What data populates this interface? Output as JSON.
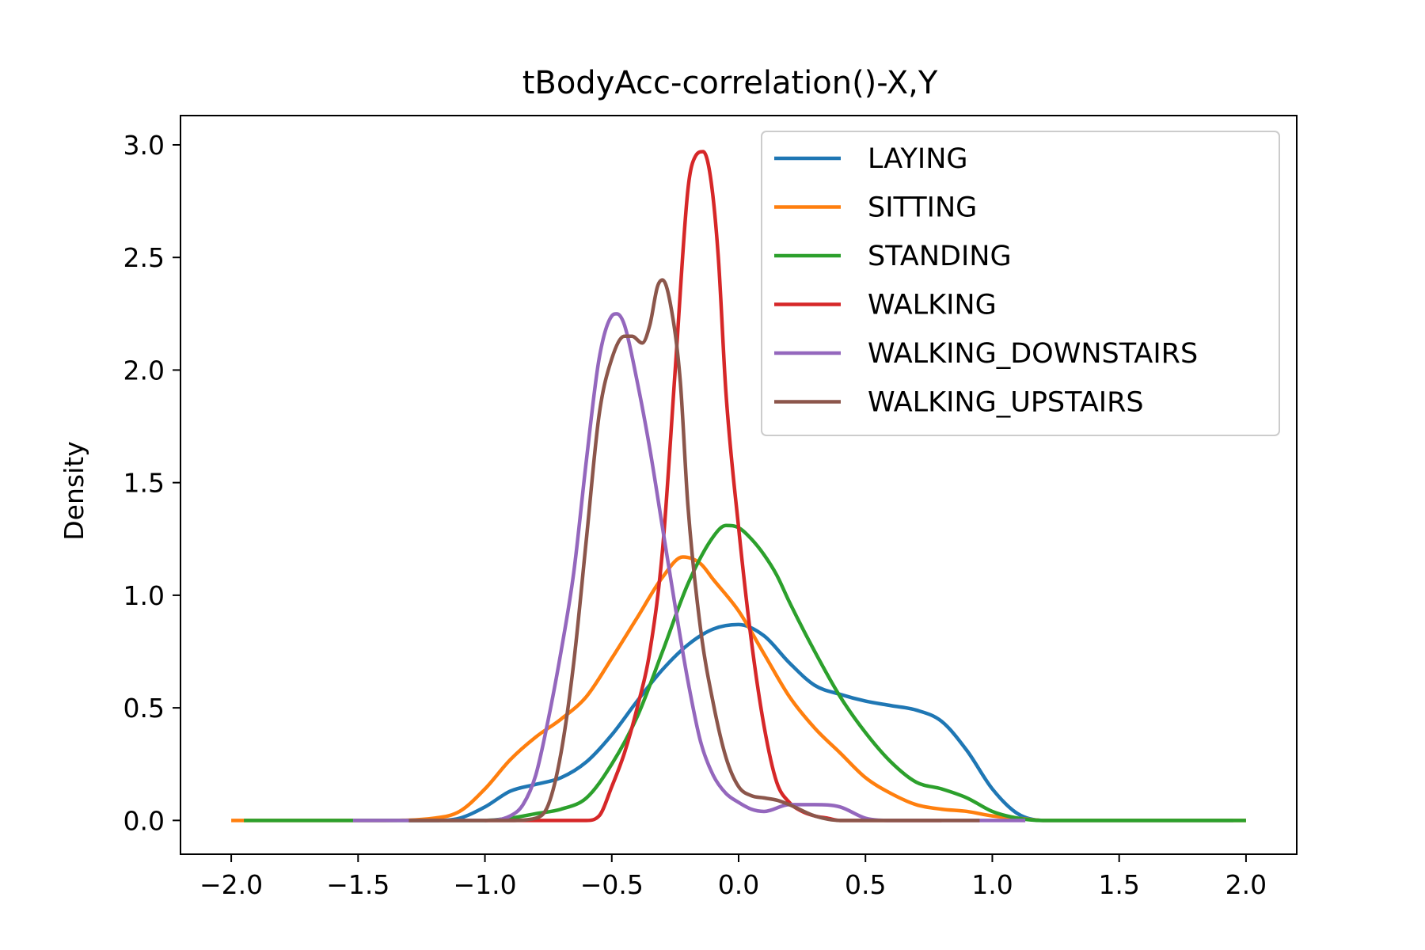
{
  "chart_data": {
    "type": "line",
    "title": "tBodyAcc-correlation()-X,Y",
    "xlabel": "",
    "ylabel": "Density",
    "xlim": [
      -2.2,
      2.2
    ],
    "ylim": [
      -0.15,
      3.13
    ],
    "xticks": [
      -2.0,
      -1.5,
      -1.0,
      -0.5,
      0.0,
      0.5,
      1.0,
      1.5,
      2.0
    ],
    "xtick_labels": [
      "−2.0",
      "−1.5",
      "−1.0",
      "−0.5",
      "0.0",
      "0.5",
      "1.0",
      "1.5",
      "2.0"
    ],
    "yticks": [
      0.0,
      0.5,
      1.0,
      1.5,
      2.0,
      2.5,
      3.0
    ],
    "ytick_labels": [
      "0.0",
      "0.5",
      "1.0",
      "1.5",
      "2.0",
      "2.5",
      "3.0"
    ],
    "grid": false,
    "legend_position": "top-right",
    "series": [
      {
        "name": "LAYING",
        "color": "#1f77b4",
        "x": [
          -1.3,
          -1.2,
          -1.1,
          -1.0,
          -0.9,
          -0.8,
          -0.7,
          -0.6,
          -0.5,
          -0.4,
          -0.3,
          -0.2,
          -0.1,
          0.0,
          0.1,
          0.2,
          0.3,
          0.4,
          0.5,
          0.6,
          0.7,
          0.8,
          0.9,
          1.0,
          1.1,
          1.2,
          1.3,
          1.4,
          1.5,
          1.6,
          1.7,
          1.8,
          1.9,
          1.95
        ],
        "values": [
          0.0,
          0.0,
          0.01,
          0.06,
          0.13,
          0.16,
          0.19,
          0.26,
          0.38,
          0.53,
          0.67,
          0.78,
          0.85,
          0.87,
          0.82,
          0.7,
          0.6,
          0.56,
          0.53,
          0.51,
          0.49,
          0.44,
          0.31,
          0.14,
          0.03,
          0.0,
          0.0,
          0.0,
          0.0,
          0.0,
          0.0,
          0.0,
          0.0,
          0.0
        ]
      },
      {
        "name": "SITTING",
        "color": "#ff7f0e",
        "x": [
          -2.0,
          -1.8,
          -1.6,
          -1.4,
          -1.2,
          -1.1,
          -1.0,
          -0.9,
          -0.8,
          -0.7,
          -0.6,
          -0.5,
          -0.4,
          -0.3,
          -0.22,
          -0.15,
          -0.1,
          0.0,
          0.1,
          0.2,
          0.3,
          0.4,
          0.5,
          0.6,
          0.7,
          0.8,
          0.9,
          1.0,
          1.1,
          1.2,
          1.4,
          1.6,
          1.8,
          2.0
        ],
        "values": [
          0.0,
          0.0,
          0.0,
          0.0,
          0.01,
          0.04,
          0.14,
          0.27,
          0.37,
          0.45,
          0.55,
          0.72,
          0.9,
          1.08,
          1.17,
          1.14,
          1.07,
          0.93,
          0.74,
          0.55,
          0.41,
          0.3,
          0.19,
          0.12,
          0.07,
          0.05,
          0.04,
          0.02,
          0.01,
          0.0,
          0.0,
          0.0,
          0.0,
          0.0
        ]
      },
      {
        "name": "STANDING",
        "color": "#2ca02c",
        "x": [
          -1.95,
          -1.5,
          -1.3,
          -1.1,
          -1.0,
          -0.9,
          -0.8,
          -0.7,
          -0.6,
          -0.5,
          -0.4,
          -0.3,
          -0.2,
          -0.1,
          -0.05,
          0.0,
          0.05,
          0.1,
          0.15,
          0.2,
          0.3,
          0.4,
          0.5,
          0.6,
          0.7,
          0.8,
          0.9,
          1.0,
          1.1,
          1.2,
          1.4,
          1.6,
          1.8,
          2.0
        ],
        "values": [
          0.0,
          0.0,
          0.0,
          0.0,
          0.0,
          0.01,
          0.03,
          0.05,
          0.1,
          0.25,
          0.46,
          0.75,
          1.05,
          1.26,
          1.31,
          1.3,
          1.25,
          1.18,
          1.09,
          0.97,
          0.75,
          0.55,
          0.39,
          0.26,
          0.17,
          0.14,
          0.1,
          0.04,
          0.01,
          0.0,
          0.0,
          0.0,
          0.0,
          0.0
        ]
      },
      {
        "name": "WALKING",
        "color": "#d62728",
        "x": [
          -1.0,
          -0.8,
          -0.7,
          -0.6,
          -0.55,
          -0.5,
          -0.45,
          -0.4,
          -0.35,
          -0.3,
          -0.25,
          -0.2,
          -0.17,
          -0.14,
          -0.11,
          -0.08,
          -0.05,
          0.0,
          0.05,
          0.1,
          0.15,
          0.2,
          0.25,
          0.3,
          0.35,
          0.4,
          0.45,
          0.5,
          0.6,
          0.7,
          0.8
        ],
        "values": [
          0.0,
          0.0,
          0.0,
          0.0,
          0.02,
          0.15,
          0.3,
          0.5,
          0.75,
          1.2,
          2.0,
          2.8,
          2.95,
          2.97,
          2.85,
          2.5,
          1.9,
          1.3,
          0.8,
          0.42,
          0.17,
          0.08,
          0.04,
          0.02,
          0.01,
          0.0,
          0.0,
          0.0,
          0.0,
          0.0,
          0.0
        ]
      },
      {
        "name": "WALKING_DOWNSTAIRS",
        "color": "#9467bd",
        "x": [
          -1.52,
          -1.3,
          -1.1,
          -1.0,
          -0.9,
          -0.85,
          -0.8,
          -0.75,
          -0.7,
          -0.65,
          -0.6,
          -0.55,
          -0.5,
          -0.48,
          -0.45,
          -0.4,
          -0.35,
          -0.3,
          -0.25,
          -0.2,
          -0.15,
          -0.1,
          -0.05,
          0.0,
          0.05,
          0.1,
          0.2,
          0.3,
          0.4,
          0.5,
          0.6,
          0.8,
          1.0,
          1.13
        ],
        "values": [
          0.0,
          0.0,
          0.0,
          0.0,
          0.02,
          0.07,
          0.2,
          0.45,
          0.75,
          1.1,
          1.6,
          2.05,
          2.24,
          2.25,
          2.2,
          1.95,
          1.65,
          1.3,
          0.95,
          0.62,
          0.35,
          0.2,
          0.12,
          0.08,
          0.05,
          0.04,
          0.07,
          0.07,
          0.06,
          0.01,
          0.0,
          0.0,
          0.0,
          0.0
        ]
      },
      {
        "name": "WALKING_UPSTAIRS",
        "color": "#8c564b",
        "x": [
          -1.3,
          -1.1,
          -0.9,
          -0.8,
          -0.75,
          -0.7,
          -0.65,
          -0.6,
          -0.55,
          -0.5,
          -0.45,
          -0.42,
          -0.38,
          -0.35,
          -0.32,
          -0.3,
          -0.27,
          -0.23,
          -0.2,
          -0.15,
          -0.1,
          -0.05,
          0.0,
          0.05,
          0.1,
          0.15,
          0.2,
          0.3,
          0.4,
          0.6,
          0.8,
          0.95
        ],
        "values": [
          0.0,
          0.0,
          0.0,
          0.01,
          0.07,
          0.3,
          0.7,
          1.25,
          1.8,
          2.05,
          2.15,
          2.15,
          2.12,
          2.2,
          2.37,
          2.4,
          2.3,
          1.95,
          1.4,
          0.85,
          0.52,
          0.28,
          0.15,
          0.11,
          0.1,
          0.09,
          0.07,
          0.02,
          0.0,
          0.0,
          0.0,
          0.0
        ]
      }
    ]
  }
}
